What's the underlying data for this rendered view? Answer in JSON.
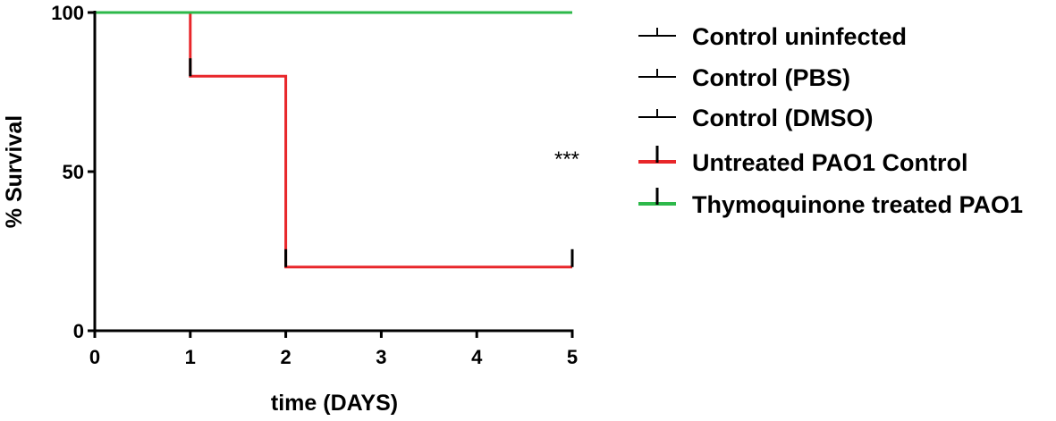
{
  "chart_data": {
    "type": "line",
    "subtype": "kaplan-meier survival",
    "xlabel": "time (DAYS)",
    "ylabel": "% Survival",
    "xlim": [
      0,
      5
    ],
    "ylim": [
      0,
      100
    ],
    "x_ticks": [
      "0",
      "1",
      "2",
      "3",
      "4",
      "5"
    ],
    "y_ticks": [
      "0",
      "50",
      "100"
    ],
    "grid": false,
    "legend_position": "right",
    "annotation": "***",
    "series": [
      {
        "name": "Control uninfected",
        "color": "#000000",
        "points": [
          [
            0,
            100
          ],
          [
            5,
            100
          ]
        ],
        "censor": []
      },
      {
        "name": "Control (PBS)",
        "color": "#000000",
        "points": [
          [
            0,
            100
          ],
          [
            5,
            100
          ]
        ],
        "censor": []
      },
      {
        "name": "Control (DMSO)",
        "color": "#000000",
        "points": [
          [
            0,
            100
          ],
          [
            5,
            100
          ]
        ],
        "censor": []
      },
      {
        "name": "Untreated PAO1 Control",
        "color": "#e8262a",
        "points": [
          [
            0,
            100
          ],
          [
            1,
            100
          ],
          [
            1,
            80
          ],
          [
            2,
            80
          ],
          [
            2,
            20
          ],
          [
            5,
            20
          ]
        ],
        "censor": [
          [
            1,
            80
          ],
          [
            2,
            20
          ],
          [
            5,
            20
          ]
        ]
      },
      {
        "name": "Thymoquinone treated PAO1",
        "color": "#2db84a",
        "points": [
          [
            0,
            100
          ],
          [
            5,
            100
          ]
        ],
        "censor": []
      }
    ]
  }
}
